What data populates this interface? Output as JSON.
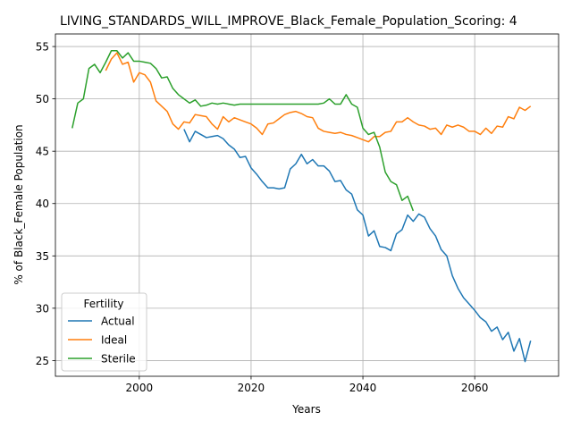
{
  "chart_data": {
    "type": "line",
    "title": "LIVING_STANDARDS_WILL_IMPROVE_Black_Female_Population_Scoring: 4",
    "xlabel": "Years",
    "ylabel": "% of Black_Female Population",
    "xlim": [
      1985,
      2075
    ],
    "ylim": [
      23.5,
      56.2
    ],
    "xticks": [
      2000,
      2020,
      2040,
      2060
    ],
    "yticks": [
      25,
      30,
      35,
      40,
      45,
      50,
      55
    ],
    "grid": true,
    "legend": {
      "title": "Fertility",
      "placement": "lower-left"
    },
    "series": [
      {
        "name": "Actual",
        "color": "#1f77b4",
        "x": [
          2008,
          2009,
          2010,
          2011,
          2012,
          2013,
          2014,
          2015,
          2016,
          2017,
          2018,
          2019,
          2020,
          2021,
          2022,
          2023,
          2024,
          2025,
          2026,
          2027,
          2028,
          2029,
          2030,
          2031,
          2032,
          2033,
          2034,
          2035,
          2036,
          2037,
          2038,
          2039,
          2040,
          2041,
          2042,
          2043,
          2044,
          2045,
          2046,
          2047,
          2048,
          2049,
          2050,
          2051,
          2052,
          2053,
          2054,
          2055,
          2056,
          2057,
          2058,
          2059,
          2060,
          2061,
          2062,
          2063,
          2064,
          2065,
          2066,
          2067,
          2068,
          2069,
          2070
        ],
        "values": [
          47.1,
          45.9,
          46.9,
          46.6,
          46.3,
          46.4,
          46.5,
          46.2,
          45.6,
          45.2,
          44.4,
          44.5,
          43.4,
          42.8,
          42.1,
          41.5,
          41.5,
          41.4,
          41.5,
          43.3,
          43.8,
          44.7,
          43.8,
          44.2,
          43.6,
          43.6,
          43.1,
          42.1,
          42.2,
          41.3,
          40.9,
          39.4,
          38.9,
          36.9,
          37.4,
          35.9,
          35.8,
          35.5,
          37.1,
          37.5,
          38.9,
          38.3,
          39.0,
          38.7,
          37.6,
          36.9,
          35.6,
          35.0,
          33.1,
          31.9,
          31.0,
          30.4,
          29.8,
          29.1,
          28.7,
          27.8,
          28.2,
          27.0,
          27.7,
          25.9,
          27.1,
          24.9,
          26.9
        ]
      },
      {
        "name": "Ideal",
        "color": "#ff7f0e",
        "x": [
          1994,
          1995,
          1996,
          1997,
          1998,
          1999,
          2000,
          2001,
          2002,
          2003,
          2004,
          2005,
          2006,
          2007,
          2008,
          2009,
          2010,
          2011,
          2012,
          2013,
          2014,
          2015,
          2016,
          2017,
          2018,
          2019,
          2020,
          2021,
          2022,
          2023,
          2024,
          2025,
          2026,
          2027,
          2028,
          2029,
          2030,
          2031,
          2032,
          2033,
          2034,
          2035,
          2036,
          2037,
          2038,
          2039,
          2040,
          2041,
          2042,
          2043,
          2044,
          2045,
          2046,
          2047,
          2048,
          2049,
          2050,
          2051,
          2052,
          2053,
          2054,
          2055,
          2056,
          2057,
          2058,
          2059,
          2060,
          2061,
          2062,
          2063,
          2064,
          2065,
          2066,
          2067,
          2068,
          2069,
          2070
        ],
        "values": [
          52.7,
          53.8,
          54.4,
          53.3,
          53.5,
          51.6,
          52.5,
          52.3,
          51.6,
          49.8,
          49.3,
          48.8,
          47.6,
          47.1,
          47.8,
          47.7,
          48.5,
          48.4,
          48.3,
          47.6,
          47.1,
          48.3,
          47.8,
          48.2,
          48.0,
          47.8,
          47.6,
          47.2,
          46.6,
          47.6,
          47.7,
          48.1,
          48.5,
          48.7,
          48.8,
          48.6,
          48.3,
          48.2,
          47.2,
          46.9,
          46.8,
          46.7,
          46.8,
          46.6,
          46.5,
          46.3,
          46.1,
          45.9,
          46.4,
          46.4,
          46.8,
          46.9,
          47.8,
          47.8,
          48.2,
          47.8,
          47.5,
          47.4,
          47.1,
          47.2,
          46.6,
          47.5,
          47.3,
          47.5,
          47.3,
          46.9,
          46.9,
          46.6,
          47.2,
          46.7,
          47.4,
          47.3,
          48.3,
          48.1,
          49.2,
          48.9,
          49.3
        ]
      },
      {
        "name": "Sterile",
        "color": "#2ca02c",
        "x": [
          1988,
          1989,
          1990,
          1991,
          1992,
          1993,
          1994,
          1995,
          1996,
          1997,
          1998,
          1999,
          2000,
          2001,
          2002,
          2003,
          2004,
          2005,
          2006,
          2007,
          2008,
          2009,
          2010,
          2011,
          2012,
          2013,
          2014,
          2015,
          2016,
          2017,
          2018,
          2019,
          2020,
          2021,
          2022,
          2023,
          2024,
          2025,
          2026,
          2027,
          2028,
          2029,
          2030,
          2031,
          2032,
          2033,
          2034,
          2035,
          2036,
          2037,
          2038,
          2039,
          2040,
          2041,
          2042,
          2043,
          2044,
          2045,
          2046,
          2047,
          2048,
          2049
        ],
        "values": [
          47.2,
          49.6,
          50.0,
          52.9,
          53.3,
          52.5,
          53.5,
          54.6,
          54.6,
          53.9,
          54.4,
          53.6,
          53.6,
          53.5,
          53.4,
          52.9,
          52.0,
          52.1,
          51.0,
          50.4,
          50.0,
          49.6,
          49.9,
          49.3,
          49.4,
          49.6,
          49.5,
          49.6,
          49.5,
          49.4,
          49.5,
          49.5,
          49.5,
          49.5,
          49.5,
          49.5,
          49.5,
          49.5,
          49.5,
          49.5,
          49.5,
          49.5,
          49.5,
          49.5,
          49.5,
          49.6,
          50.0,
          49.5,
          49.5,
          50.4,
          49.5,
          49.2,
          47.2,
          46.6,
          46.8,
          45.4,
          43.0,
          42.1,
          41.8,
          40.3,
          40.7,
          39.3
        ]
      }
    ]
  }
}
